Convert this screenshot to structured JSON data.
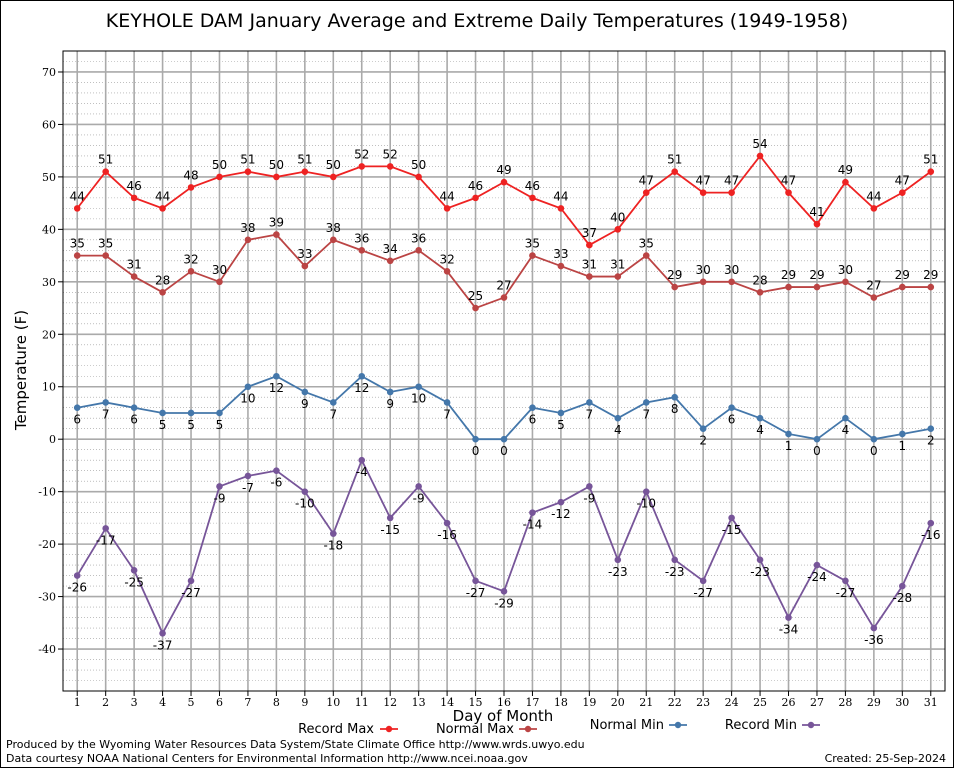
{
  "chart_data": {
    "type": "line",
    "title": "KEYHOLE DAM January Average and Extreme Daily Temperatures (1949-1958)",
    "xlabel": "Day of Month",
    "ylabel": "Temperature (F)",
    "ylim": [
      -48,
      74
    ],
    "yticks": [
      -40,
      -30,
      -20,
      -10,
      0,
      10,
      20,
      30,
      40,
      50,
      60,
      70
    ],
    "x": [
      1,
      2,
      3,
      4,
      5,
      6,
      7,
      8,
      9,
      10,
      11,
      12,
      13,
      14,
      15,
      16,
      17,
      18,
      19,
      20,
      21,
      22,
      23,
      24,
      25,
      26,
      27,
      28,
      29,
      30,
      31
    ],
    "grid": true,
    "legend_position": "bottom",
    "series": [
      {
        "name": "Record Max",
        "color": "#ee2222",
        "label_side": "above",
        "values": [
          44,
          51,
          46,
          44,
          48,
          50,
          51,
          50,
          51,
          50,
          52,
          52,
          50,
          44,
          46,
          49,
          46,
          44,
          37,
          40,
          47,
          51,
          47,
          47,
          54,
          47,
          41,
          49,
          44,
          47,
          51
        ]
      },
      {
        "name": "Normal Max",
        "color": "#bb4444",
        "label_side": "above",
        "values": [
          35,
          35,
          31,
          28,
          32,
          30,
          38,
          39,
          33,
          38,
          36,
          34,
          36,
          32,
          25,
          27,
          35,
          33,
          31,
          31,
          35,
          29,
          30,
          30,
          28,
          29,
          29,
          30,
          27,
          29,
          29
        ]
      },
      {
        "name": "Normal Min",
        "color": "#4477aa",
        "label_side": "below",
        "values": [
          6,
          7,
          6,
          5,
          5,
          5,
          10,
          12,
          9,
          7,
          12,
          9,
          10,
          7,
          0,
          0,
          6,
          5,
          7,
          4,
          7,
          8,
          2,
          6,
          4,
          1,
          0,
          4,
          0,
          1,
          2
        ]
      },
      {
        "name": "Record Min",
        "color": "#775599",
        "label_side": "below",
        "values": [
          -26,
          -17,
          -25,
          -37,
          -27,
          -9,
          -7,
          -6,
          -10,
          -18,
          -4,
          -15,
          -9,
          -16,
          -27,
          -29,
          -14,
          -12,
          -9,
          -23,
          -10,
          -23,
          -27,
          -15,
          -23,
          -34,
          -24,
          -27,
          -36,
          -28,
          -16
        ]
      }
    ]
  },
  "footer": {
    "produced_by": "Produced by the Wyoming Water Resources Data System/State Climate Office http://www.wrds.uwyo.edu",
    "courtesy": "Data courtesy NOAA National Centers for Environmental Information http://www.ncei.noaa.gov",
    "created": "Created:  25-Sep-2024"
  }
}
